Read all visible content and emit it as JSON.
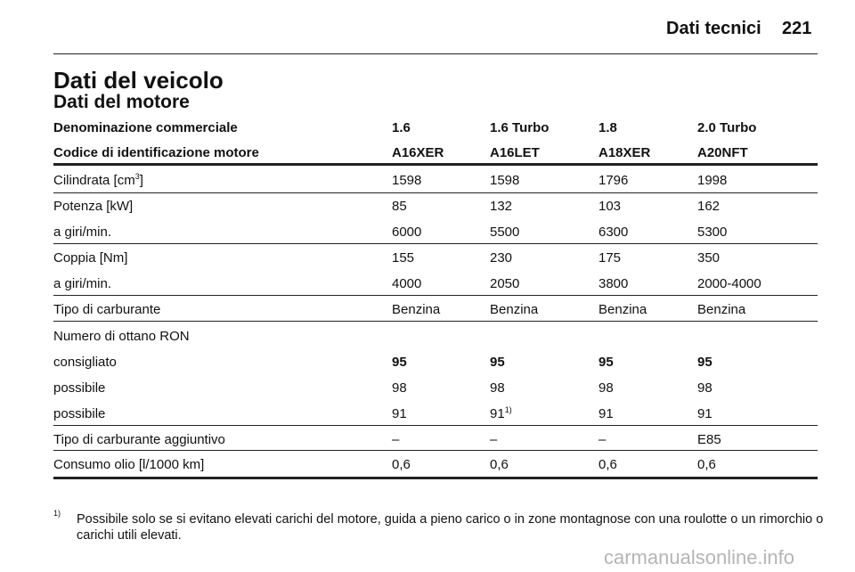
{
  "header": {
    "section": "Dati tecnici",
    "page": "221"
  },
  "title": "Dati del veicolo",
  "subtitle": "Dati del motore",
  "table": {
    "header": [
      [
        "Denominazione commerciale",
        "1.6",
        "1.6 Turbo",
        "1.8",
        "2.0 Turbo"
      ],
      [
        "Codice di identificazione motore",
        "A16XER",
        "A16LET",
        "A18XER",
        "A20NFT"
      ]
    ],
    "rows": [
      [
        {
          "text": "Cilindrata [cm",
          "sup": "3",
          "tail": "]"
        },
        "1598",
        "1598",
        "1796",
        "1998"
      ],
      [
        "Potenza [kW]",
        "85",
        "132",
        "103",
        "162"
      ],
      [
        "a giri/min.",
        "6000",
        "5500",
        "6300",
        "5300"
      ],
      [
        "Coppia [Nm]",
        "155",
        "230",
        "175",
        "350"
      ],
      [
        "a giri/min.",
        "4000",
        "2050",
        "3800",
        "2000-4000"
      ],
      [
        "Tipo di carburante",
        "Benzina",
        "Benzina",
        "Benzina",
        "Benzina"
      ],
      [
        "Numero di ottano RON"
      ],
      [
        "consigliato",
        "95",
        "95",
        "95",
        "95"
      ],
      [
        "possibile",
        "98",
        "98",
        "98",
        "98"
      ],
      [
        "possibile",
        "91",
        {
          "text": "91",
          "sup": "1)"
        },
        "91",
        "91"
      ],
      [
        "Tipo di carburante aggiuntivo",
        "–",
        "–",
        "–",
        "E85"
      ],
      [
        "Consumo olio [l/1000 km]",
        "0,6",
        "0,6",
        "0,6",
        "0,6"
      ]
    ]
  },
  "footnote": {
    "marker": "1)",
    "text": "Possibile solo se si evitano elevati carichi del motore, guida a pieno carico o in zone montagnose con una roulotte o un rimorchio o carichi utili elevati."
  },
  "watermark": "carmanualsonline.info"
}
